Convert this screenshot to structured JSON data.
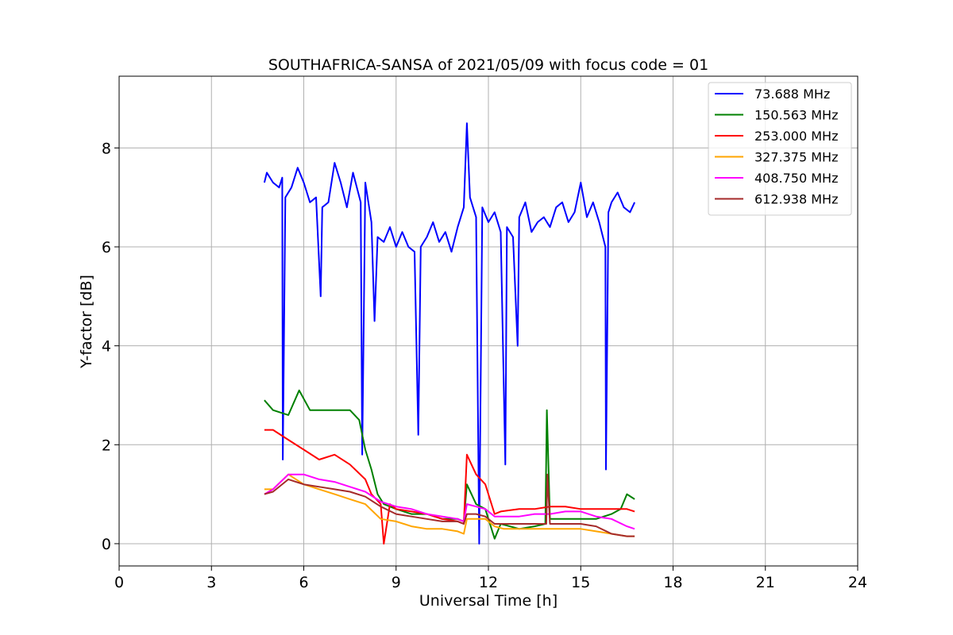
{
  "chart_data": {
    "type": "line",
    "title": "SOUTHAFRICA-SANSA of 2021/05/09 with focus code = 01",
    "xlabel": "Universal Time [h]",
    "ylabel": "Y-factor [dB]",
    "xlim": [
      0,
      24
    ],
    "ylim": [
      -0.45,
      9.45
    ],
    "xticks": [
      0,
      3,
      6,
      9,
      12,
      15,
      18,
      21,
      24
    ],
    "yticks": [
      0,
      2,
      4,
      6,
      8
    ],
    "grid": true,
    "legend_position": "top-right",
    "series": [
      {
        "name": " 73.688 MHz",
        "color": "#0000ff",
        "x": [
          4.72,
          4.8,
          5.0,
          5.2,
          5.3,
          5.32,
          5.4,
          5.6,
          5.8,
          6.0,
          6.2,
          6.4,
          6.55,
          6.6,
          6.8,
          7.0,
          7.2,
          7.4,
          7.6,
          7.85,
          7.9,
          8.0,
          8.2,
          8.3,
          8.4,
          8.6,
          8.8,
          9.0,
          9.2,
          9.4,
          9.6,
          9.72,
          9.8,
          10.0,
          10.2,
          10.4,
          10.6,
          10.8,
          11.0,
          11.2,
          11.3,
          11.4,
          11.6,
          11.7,
          11.8,
          12.0,
          12.2,
          12.4,
          12.55,
          12.6,
          12.8,
          12.95,
          13.0,
          13.2,
          13.4,
          13.6,
          13.8,
          14.0,
          14.2,
          14.4,
          14.6,
          14.8,
          15.0,
          15.2,
          15.4,
          15.6,
          15.8,
          15.82,
          15.9,
          16.0,
          16.2,
          16.4,
          16.6,
          16.75
        ],
        "y": [
          7.3,
          7.5,
          7.3,
          7.2,
          7.4,
          1.7,
          7.0,
          7.2,
          7.6,
          7.3,
          6.9,
          7.0,
          5.0,
          6.8,
          6.9,
          7.7,
          7.3,
          6.8,
          7.5,
          6.9,
          1.8,
          7.3,
          6.5,
          4.5,
          6.2,
          6.1,
          6.4,
          6.0,
          6.3,
          6.0,
          5.9,
          2.2,
          6.0,
          6.2,
          6.5,
          6.1,
          6.3,
          5.9,
          6.4,
          6.8,
          8.5,
          7.0,
          6.6,
          0.0,
          6.8,
          6.5,
          6.7,
          6.3,
          1.6,
          6.4,
          6.2,
          4.0,
          6.6,
          6.9,
          6.3,
          6.5,
          6.6,
          6.4,
          6.8,
          6.9,
          6.5,
          6.7,
          7.3,
          6.6,
          6.9,
          6.5,
          6.0,
          1.5,
          6.7,
          6.9,
          7.1,
          6.8,
          6.7,
          6.9
        ]
      },
      {
        "name": "150.563 MHz",
        "color": "#008000",
        "x": [
          4.72,
          5.0,
          5.5,
          5.85,
          6.2,
          6.5,
          7.0,
          7.5,
          7.8,
          8.0,
          8.2,
          8.4,
          8.6,
          9.0,
          9.5,
          10.0,
          10.5,
          11.0,
          11.2,
          11.3,
          11.6,
          11.9,
          12.2,
          12.4,
          13.0,
          13.5,
          13.85,
          13.9,
          14.0,
          14.5,
          15.0,
          15.5,
          16.0,
          16.3,
          16.5,
          16.75
        ],
        "y": [
          2.9,
          2.7,
          2.6,
          3.1,
          2.7,
          2.7,
          2.7,
          2.7,
          2.5,
          1.9,
          1.5,
          1.0,
          0.8,
          0.7,
          0.6,
          0.6,
          0.5,
          0.5,
          0.45,
          1.2,
          0.8,
          0.7,
          0.1,
          0.4,
          0.3,
          0.35,
          0.4,
          2.7,
          0.5,
          0.5,
          0.5,
          0.5,
          0.6,
          0.7,
          1.0,
          0.9
        ]
      },
      {
        "name": "253.000 MHz",
        "color": "#ff0000",
        "x": [
          4.72,
          5.0,
          5.5,
          6.0,
          6.5,
          7.0,
          7.5,
          8.0,
          8.2,
          8.5,
          8.6,
          8.8,
          9.0,
          9.5,
          10.0,
          10.5,
          11.0,
          11.2,
          11.3,
          11.6,
          11.9,
          12.2,
          12.4,
          13.0,
          13.5,
          14.0,
          14.5,
          15.0,
          15.5,
          16.0,
          16.5,
          16.75
        ],
        "y": [
          2.3,
          2.3,
          2.1,
          1.9,
          1.7,
          1.8,
          1.6,
          1.3,
          1.0,
          0.8,
          0.0,
          0.8,
          0.7,
          0.65,
          0.6,
          0.5,
          0.45,
          0.4,
          1.8,
          1.4,
          1.2,
          0.6,
          0.65,
          0.7,
          0.7,
          0.75,
          0.75,
          0.7,
          0.7,
          0.7,
          0.7,
          0.65
        ]
      },
      {
        "name": "327.375 MHz",
        "color": "#ffa500",
        "x": [
          4.72,
          5.0,
          5.5,
          6.0,
          6.5,
          7.0,
          7.5,
          8.0,
          8.5,
          9.0,
          9.5,
          10.0,
          10.5,
          11.0,
          11.2,
          11.3,
          11.6,
          11.9,
          12.2,
          12.5,
          13.0,
          13.5,
          14.0,
          14.5,
          15.0,
          15.5,
          16.0,
          16.5,
          16.75
        ],
        "y": [
          1.1,
          1.1,
          1.4,
          1.2,
          1.1,
          1.0,
          0.9,
          0.8,
          0.5,
          0.45,
          0.35,
          0.3,
          0.3,
          0.25,
          0.2,
          0.5,
          0.5,
          0.5,
          0.35,
          0.3,
          0.3,
          0.3,
          0.3,
          0.3,
          0.3,
          0.25,
          0.2,
          0.15,
          0.15
        ]
      },
      {
        "name": "408.750 MHz",
        "color": "#ff00ff",
        "x": [
          4.72,
          5.0,
          5.5,
          6.0,
          6.5,
          7.0,
          7.5,
          8.0,
          8.5,
          9.0,
          9.5,
          10.0,
          10.5,
          11.0,
          11.2,
          11.3,
          11.6,
          11.9,
          12.2,
          12.5,
          13.0,
          13.5,
          14.0,
          14.5,
          15.0,
          15.5,
          16.0,
          16.5,
          16.75
        ],
        "y": [
          1.0,
          1.1,
          1.4,
          1.4,
          1.3,
          1.25,
          1.15,
          1.05,
          0.85,
          0.75,
          0.7,
          0.6,
          0.55,
          0.5,
          0.45,
          0.8,
          0.75,
          0.7,
          0.55,
          0.55,
          0.55,
          0.6,
          0.6,
          0.65,
          0.65,
          0.55,
          0.5,
          0.35,
          0.3
        ]
      },
      {
        "name": "612.938 MHz",
        "color": "#a52a2a",
        "x": [
          4.72,
          5.0,
          5.5,
          6.0,
          6.5,
          7.0,
          7.5,
          8.0,
          8.5,
          9.0,
          9.5,
          10.0,
          10.5,
          11.0,
          11.2,
          11.3,
          11.6,
          11.9,
          12.2,
          12.5,
          13.0,
          13.5,
          13.88,
          13.92,
          14.0,
          14.5,
          15.0,
          15.5,
          16.0,
          16.5,
          16.75
        ],
        "y": [
          1.0,
          1.05,
          1.3,
          1.2,
          1.15,
          1.1,
          1.05,
          0.95,
          0.75,
          0.6,
          0.55,
          0.5,
          0.45,
          0.45,
          0.4,
          0.6,
          0.6,
          0.55,
          0.4,
          0.4,
          0.4,
          0.4,
          0.4,
          1.4,
          0.4,
          0.4,
          0.4,
          0.35,
          0.2,
          0.15,
          0.15
        ]
      }
    ]
  }
}
